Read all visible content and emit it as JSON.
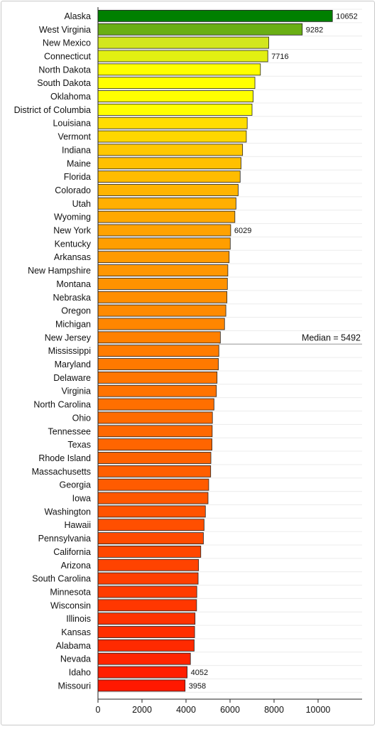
{
  "chart_data": {
    "type": "bar",
    "orientation": "horizontal",
    "categories": [
      "Alaska",
      "West Virginia",
      "New Mexico",
      "Connecticut",
      "North Dakota",
      "South Dakota",
      "Oklahoma",
      "District of Columbia",
      "Louisiana",
      "Vermont",
      "Indiana",
      "Maine",
      "Florida",
      "Colorado",
      "Utah",
      "Wyoming",
      "New York",
      "Kentucky",
      "Arkansas",
      "New Hampshire",
      "Montana",
      "Nebraska",
      "Oregon",
      "Michigan",
      "New Jersey",
      "Mississippi",
      "Maryland",
      "Delaware",
      "Virginia",
      "North Carolina",
      "Ohio",
      "Tennessee",
      "Texas",
      "Rhode Island",
      "Massachusetts",
      "Georgia",
      "Iowa",
      "Washington",
      "Hawaii",
      "Pennsylvania",
      "California",
      "Arizona",
      "South Carolina",
      "Minnesota",
      "Wisconsin",
      "Illinois",
      "Kansas",
      "Alabama",
      "Nevada",
      "Idaho",
      "Missouri"
    ],
    "values": [
      10652,
      9282,
      7760,
      7716,
      7380,
      7130,
      7050,
      7000,
      6780,
      6740,
      6570,
      6500,
      6460,
      6370,
      6270,
      6220,
      6029,
      6010,
      5960,
      5900,
      5880,
      5860,
      5810,
      5750,
      5560,
      5492,
      5470,
      5410,
      5380,
      5270,
      5200,
      5190,
      5180,
      5130,
      5120,
      5030,
      5000,
      4880,
      4820,
      4790,
      4670,
      4570,
      4550,
      4490,
      4480,
      4410,
      4390,
      4370,
      4200,
      4052,
      3958
    ],
    "data_labels": {
      "Alaska": "10652",
      "West Virginia": "9282",
      "Connecticut": "7716",
      "New York": "6029",
      "Idaho": "4052",
      "Missouri": "3958"
    },
    "colors": [
      "#008000",
      "#6aaf14",
      "#d2e61e",
      "#e2ef12",
      "#ffff00",
      "#ffff00",
      "#ffff00",
      "#ffff00",
      "#ffdd00",
      "#ffd700",
      "#ffc800",
      "#ffc000",
      "#ffbc00",
      "#ffb400",
      "#ffaf00",
      "#ffa800",
      "#ffa200",
      "#ff9e00",
      "#ff9a00",
      "#ff9600",
      "#ff9200",
      "#ff8e00",
      "#ff8a00",
      "#ff8600",
      "#ff8000",
      "#ff7c00",
      "#ff7900",
      "#ff7600",
      "#ff7300",
      "#ff6f00",
      "#ff6b00",
      "#ff6800",
      "#ff6500",
      "#ff6200",
      "#ff5f00",
      "#ff5b00",
      "#ff5700",
      "#ff5300",
      "#ff4f00",
      "#ff4b00",
      "#ff4700",
      "#ff4300",
      "#ff3f00",
      "#ff3b00",
      "#ff3700",
      "#ff3300",
      "#ff2e00",
      "#ff2a00",
      "#ff2500",
      "#ff1e00",
      "#ff1800"
    ],
    "xticks": [
      "0",
      "2000",
      "4000",
      "6000",
      "8000",
      "10000"
    ],
    "xlim": [
      0,
      12000
    ],
    "median_value": 5492,
    "median_label": "Median = 5492",
    "grid": "horizontal lines, light gray",
    "legend": "none",
    "title": "",
    "xlabel": "",
    "ylabel": ""
  }
}
